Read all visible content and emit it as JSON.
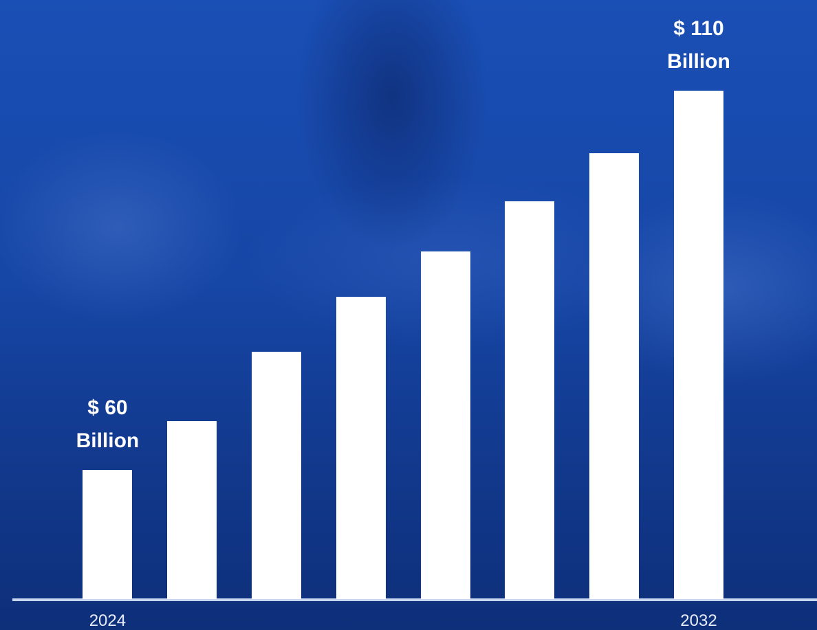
{
  "chart_data": {
    "type": "bar",
    "categories": [
      "2024",
      null,
      null,
      null,
      null,
      null,
      null,
      "2032"
    ],
    "values": [
      60,
      66.5,
      75.6,
      82.9,
      88.8,
      95.5,
      101.8,
      110
    ],
    "value_labels": [
      "$ 60 Billion",
      null,
      null,
      null,
      null,
      null,
      null,
      "$ 110 Billion"
    ],
    "color": "#ffffff",
    "ylim": [
      43,
      122
    ]
  }
}
